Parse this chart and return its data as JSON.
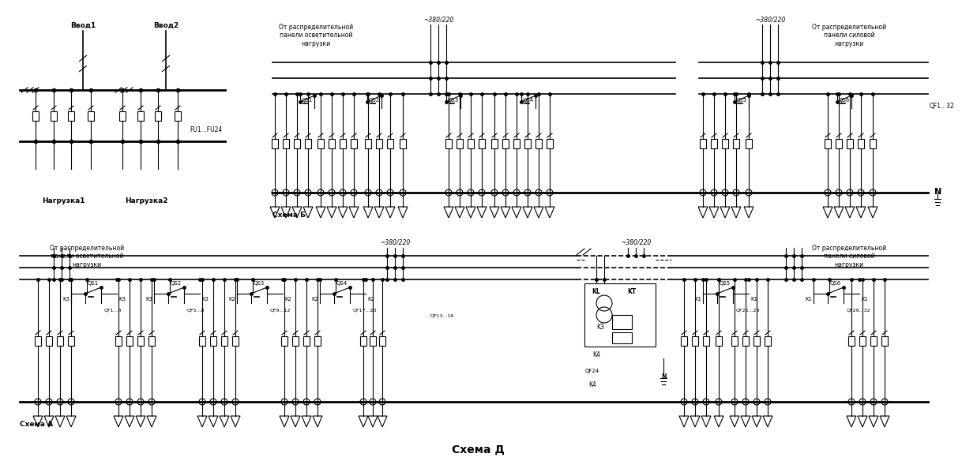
{
  "background": "#ffffff",
  "line_color": "#000000",
  "fig_width": 11.88,
  "fig_height": 5.84,
  "schema_A_label": "Схема А",
  "schema_B_label": "Схема Б",
  "schema_D_label": "Схема Д",
  "vvod1": "Ввод1",
  "vvod2": "Ввод2",
  "nagruzka1": "Нагрузка1",
  "nagruzka2": "Нагрузка2",
  "fu_label": "FU1...FU24",
  "voltage_top_mid": "~380/220",
  "voltage_top_right": "~380/220",
  "voltage_bot_mid": "~380/220",
  "voltage_bot_right": "~380/220",
  "qf_top_right": "QF1...32",
  "n_label": "N",
  "kl_label": "KL",
  "kt_label": "KT",
  "k4_label": "K4",
  "k3_label": "K3",
  "qf24_label": "QF24",
  "dist_light_top": "От распределительной\nпанели осветительной\nнагрузки",
  "dist_power_top": "От распределительной\nпанели силовой\nнагрузки",
  "dist_light_bot": "От распределительной\nпанели осветительной\nнагрузки",
  "dist_power_bot": "От распределительной\nпанели силовой\nнагрузки",
  "qf_labels": [
    "QF1...4",
    "QF5...8",
    "QF9...12",
    "QF17...23",
    "QF13...16",
    "QF24",
    "QF25...28",
    "QF29...32"
  ]
}
